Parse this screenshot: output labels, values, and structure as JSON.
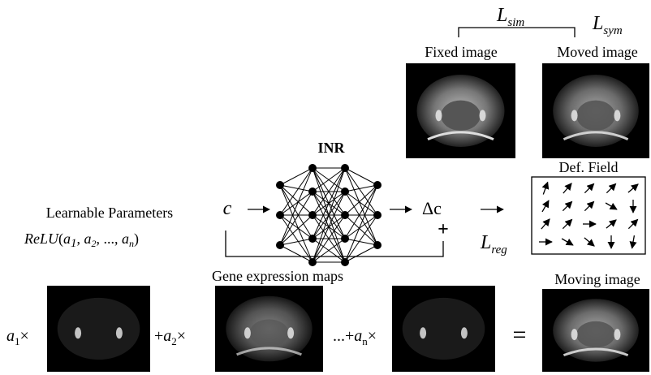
{
  "losses": {
    "sim": {
      "symbol": "L",
      "subscript": "sim"
    },
    "sym": {
      "symbol": "L",
      "subscript": "sym"
    },
    "reg": {
      "symbol": "L",
      "subscript": "reg"
    }
  },
  "images": {
    "fixed": "Fixed image",
    "moved": "Moved image",
    "moving": "Moving image"
  },
  "network": {
    "title": "INR",
    "input": "c",
    "output": "Δc",
    "plus": "+"
  },
  "def_field": "Def. Field",
  "params": {
    "title": "Learnable Parameters",
    "function": "ReLU",
    "open": "(",
    "close": ")",
    "separator": ", ",
    "ellipsis": "...",
    "args": [
      {
        "symbol": "a",
        "subscript": "1"
      },
      {
        "symbol": "a",
        "subscript": "2"
      },
      {
        "symbol": "a",
        "subscript": "n"
      }
    ]
  },
  "gene": {
    "title": "Gene expression maps",
    "terms": [
      {
        "prefix": "",
        "symbol": "a",
        "subscript": "1",
        "times": "×"
      },
      {
        "prefix": "+",
        "symbol": "a",
        "subscript": "2",
        "times": "×"
      },
      {
        "prefix": "...+",
        "symbol": "a",
        "subscript": "n",
        "times": "×"
      }
    ],
    "equals": "="
  }
}
